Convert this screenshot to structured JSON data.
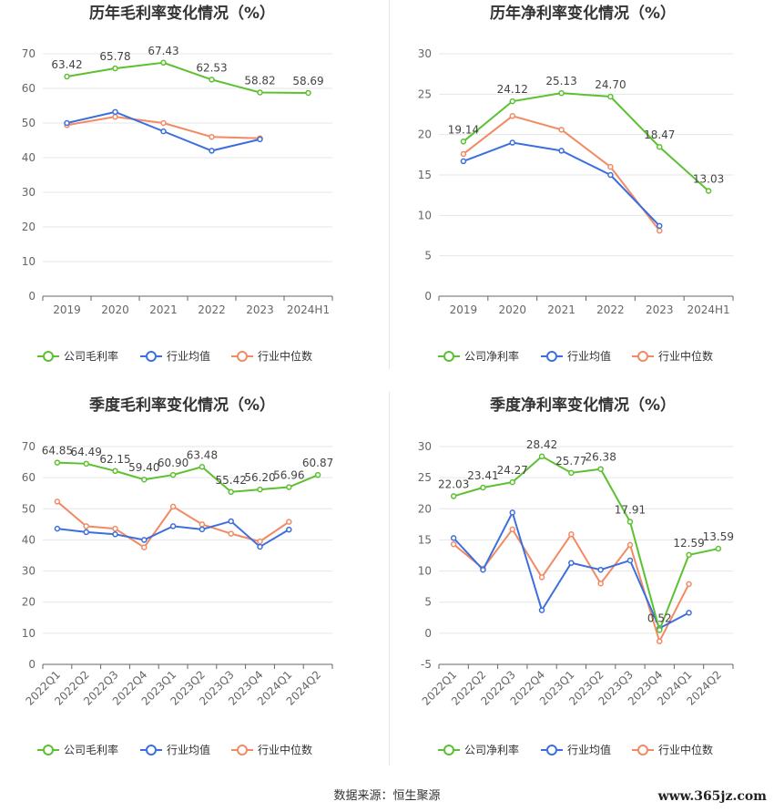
{
  "colors": {
    "company": "#5cc130",
    "industry_avg": "#3c6fdd",
    "industry_median": "#f28a63"
  },
  "legend_labels": {
    "gross": [
      "公司毛利率",
      "行业均值",
      "行业中位数"
    ],
    "net": [
      "公司净利率",
      "行业均值",
      "行业中位数"
    ]
  },
  "footer": {
    "source": "数据来源：恒生聚源"
  },
  "watermark": "www.365jz.com",
  "chart_data": [
    {
      "type": "line",
      "title": "历年毛利率变化情况（%）",
      "categories": [
        "2019",
        "2020",
        "2021",
        "2022",
        "2023",
        "2024H1"
      ],
      "ylim": [
        0,
        70
      ],
      "yticks": [
        0,
        10,
        20,
        30,
        40,
        50,
        60,
        70
      ],
      "rotated_labels": false,
      "series": [
        {
          "name": "公司毛利率",
          "values": [
            63.42,
            65.78,
            67.43,
            62.53,
            58.82,
            58.69
          ],
          "labels": [
            "63.42",
            "65.78",
            "67.43",
            "62.53",
            "58.82",
            "58.69"
          ]
        },
        {
          "name": "行业均值",
          "values": [
            50.0,
            53.2,
            47.6,
            42.0,
            45.3,
            null
          ]
        },
        {
          "name": "行业中位数",
          "values": [
            49.4,
            51.8,
            50.0,
            46.0,
            45.6,
            null
          ]
        }
      ],
      "legend": "bottom",
      "grid": true
    },
    {
      "type": "line",
      "title": "历年净利率变化情况（%）",
      "categories": [
        "2019",
        "2020",
        "2021",
        "2022",
        "2023",
        "2024H1"
      ],
      "ylim": [
        0,
        30
      ],
      "yticks": [
        0,
        5,
        10,
        15,
        20,
        25,
        30
      ],
      "rotated_labels": false,
      "series": [
        {
          "name": "公司净利率",
          "values": [
            19.14,
            24.12,
            25.13,
            24.7,
            18.47,
            13.03
          ],
          "labels": [
            "19.14",
            "24.12",
            "25.13",
            "24.70",
            "18.47",
            "13.03"
          ]
        },
        {
          "name": "行业均值",
          "values": [
            16.7,
            19.0,
            18.0,
            15.0,
            8.7,
            null
          ]
        },
        {
          "name": "行业中位数",
          "values": [
            17.6,
            22.3,
            20.6,
            16.0,
            8.1,
            null
          ]
        }
      ],
      "legend": "bottom",
      "grid": true
    },
    {
      "type": "line",
      "title": "季度毛利率变化情况（%）",
      "categories": [
        "2022Q1",
        "2022Q2",
        "2022Q3",
        "2022Q4",
        "2023Q1",
        "2023Q2",
        "2023Q3",
        "2023Q4",
        "2024Q1",
        "2024Q2"
      ],
      "ylim": [
        0,
        70
      ],
      "yticks": [
        0,
        10,
        20,
        30,
        40,
        50,
        60,
        70
      ],
      "rotated_labels": true,
      "series": [
        {
          "name": "公司毛利率",
          "values": [
            64.85,
            64.49,
            62.15,
            59.4,
            60.9,
            63.48,
            55.42,
            56.2,
            56.96,
            60.87
          ],
          "labels": [
            "64.85",
            "64.49",
            "62.15",
            "59.40",
            "60.90",
            "63.48",
            "55.42",
            "56.20",
            "56.96",
            "60.87"
          ]
        },
        {
          "name": "行业均值",
          "values": [
            43.6,
            42.5,
            41.8,
            40.0,
            44.4,
            43.4,
            46.0,
            37.8,
            43.3,
            null
          ]
        },
        {
          "name": "行业中位数",
          "values": [
            52.3,
            44.4,
            43.6,
            37.6,
            50.7,
            45.0,
            42.0,
            39.5,
            45.8,
            null
          ]
        }
      ],
      "legend": "bottom",
      "grid": true
    },
    {
      "type": "line",
      "title": "季度净利率变化情况（%）",
      "categories": [
        "2022Q1",
        "2022Q2",
        "2022Q3",
        "2022Q4",
        "2023Q1",
        "2023Q2",
        "2023Q3",
        "2023Q4",
        "2024Q1",
        "2024Q2"
      ],
      "ylim": [
        -5,
        30
      ],
      "yticks": [
        -5,
        0,
        5,
        10,
        15,
        20,
        25,
        30
      ],
      "rotated_labels": true,
      "series": [
        {
          "name": "公司净利率",
          "values": [
            22.03,
            23.41,
            24.27,
            28.42,
            25.77,
            26.38,
            17.91,
            0.52,
            12.59,
            13.59
          ],
          "labels": [
            "22.03",
            "23.41",
            "24.27",
            "28.42",
            "25.77",
            "26.38",
            "17.91",
            "0.52",
            "12.59",
            "13.59"
          ]
        },
        {
          "name": "行业均值",
          "values": [
            15.3,
            10.2,
            19.4,
            3.7,
            11.3,
            10.2,
            11.7,
            0.8,
            3.3,
            null
          ]
        },
        {
          "name": "行业中位数",
          "values": [
            14.3,
            10.4,
            16.7,
            9.0,
            15.9,
            8.0,
            14.2,
            -1.3,
            7.9,
            null
          ]
        }
      ],
      "legend": "bottom",
      "grid": true
    }
  ]
}
